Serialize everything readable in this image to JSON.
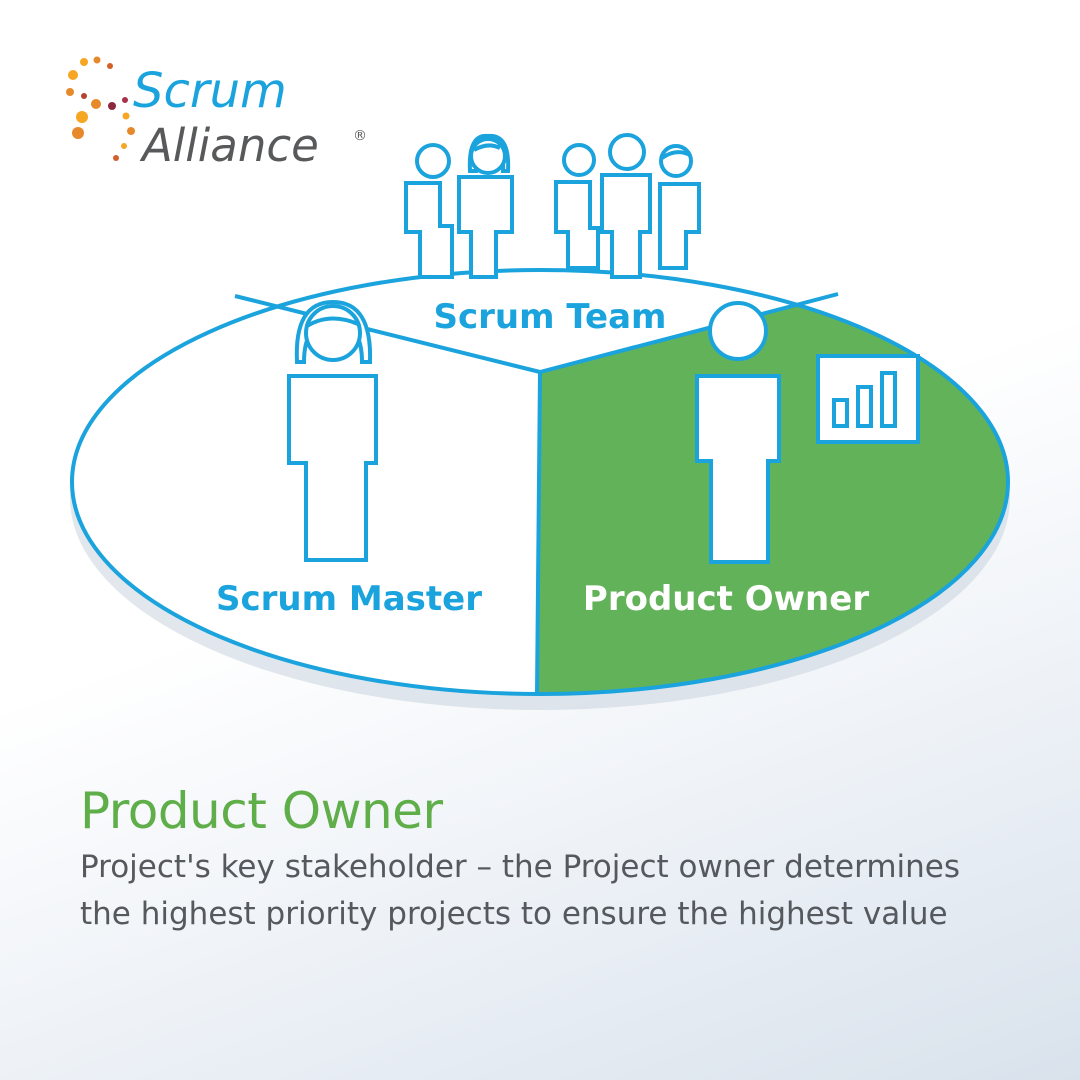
{
  "logo": {
    "line1": "Scrum",
    "line2": "Alliance",
    "registered": "®"
  },
  "diagram": {
    "segments": {
      "team_label": "Scrum Team",
      "master_label": "Scrum Master",
      "owner_label": "Product Owner"
    },
    "highlighted_segment": "Product Owner",
    "colors": {
      "outline": "#1aa3dc",
      "highlight": "#62b25a",
      "logo_blue": "#1aa3dc",
      "logo_gray": "#58595b"
    }
  },
  "caption": {
    "title": "Product Owner",
    "body": "Project's key stakeholder – the Project owner determines the highest priority projects to ensure the highest value"
  }
}
